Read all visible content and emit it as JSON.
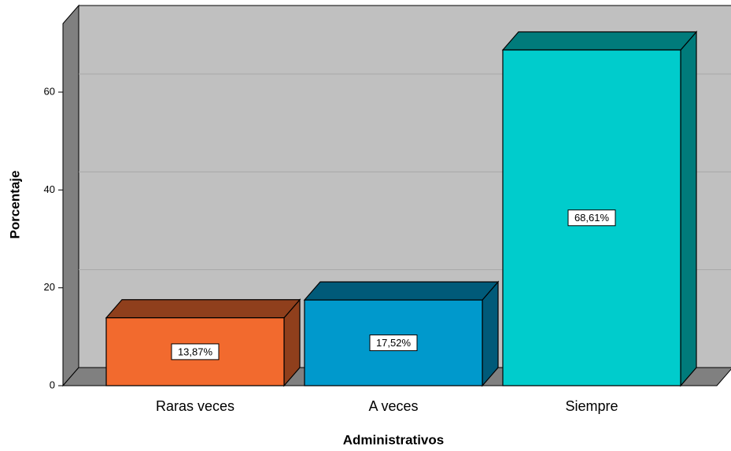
{
  "chart_data": {
    "type": "bar3d",
    "x_label": "Administrativos",
    "y_label": "Porcentaje",
    "categories": [
      "Raras veces",
      "A veces",
      "Siempre"
    ],
    "values": [
      13.87,
      17.52,
      68.61
    ],
    "value_labels": [
      "13,87%",
      "17,52%",
      "68,61%"
    ],
    "colors": [
      {
        "front": "#f26a2e",
        "side": "#8f3f1c"
      },
      {
        "front": "#0099cc",
        "side": "#005a79"
      },
      {
        "front": "#00cccc",
        "side": "#007b7b"
      }
    ],
    "ylim": [
      0,
      74
    ],
    "yticks": [
      0,
      20,
      40,
      60
    ],
    "grid": true
  }
}
